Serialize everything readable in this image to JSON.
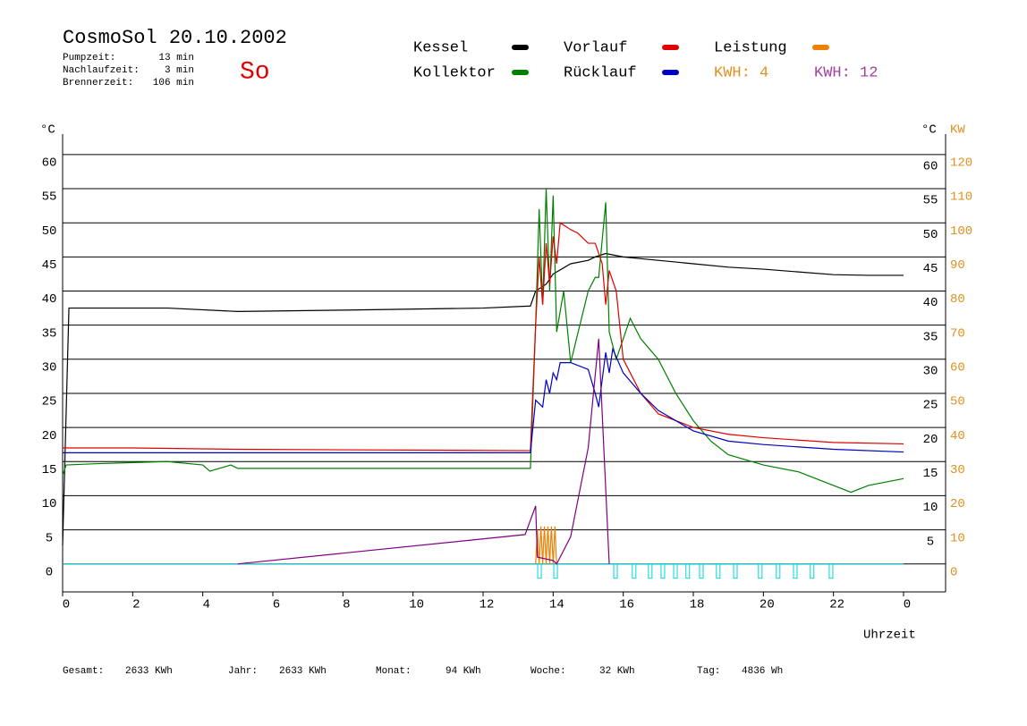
{
  "header": {
    "title": "CosmoSol 20.10.2002",
    "day": "So",
    "stats": [
      {
        "label": "Pumpzeit:",
        "value": "13 min"
      },
      {
        "label": "Nachlaufzeit:",
        "value": "3 min"
      },
      {
        "label": "Brennerzeit:",
        "value": "106 min"
      }
    ]
  },
  "chart_data": {
    "type": "line",
    "x_label": "Uhrzeit",
    "y_label": "°C",
    "y2_label": "°C",
    "y2_unit": "KW",
    "xlim": [
      0,
      25.2
    ],
    "xticks": [
      0,
      2,
      4,
      6,
      8,
      10,
      12,
      14,
      16,
      18,
      20,
      22,
      {
        "value": 24,
        "label": "0"
      }
    ],
    "ylim": [
      -4.1,
      63
    ],
    "yticks": [
      0,
      5,
      10,
      15,
      20,
      25,
      30,
      35,
      40,
      45,
      50,
      55,
      60
    ],
    "y2lim": [
      -8.2,
      126
    ],
    "y2ticks": [
      0,
      10,
      20,
      30,
      40,
      50,
      60,
      70,
      80,
      90,
      100,
      110,
      120
    ],
    "grid": true,
    "series": [
      {
        "name": "Kessel",
        "color": "#000000",
        "x": [
          0,
          0.18,
          1,
          3,
          5,
          8,
          12,
          13.35,
          13.5,
          13.8,
          14,
          14.5,
          15,
          15.2,
          15.5,
          16,
          17,
          18,
          19,
          20,
          21,
          22,
          23,
          24
        ],
        "values": [
          2.7,
          37.5,
          37.5,
          37.5,
          37,
          37.2,
          37.5,
          37.8,
          40,
          41,
          42.5,
          44,
          44.5,
          45,
          45.5,
          45,
          44.5,
          44,
          43.5,
          43.2,
          42.8,
          42.4,
          42.3,
          42.3
        ]
      },
      {
        "name": "Kollektor",
        "color": "#008000",
        "x": [
          0,
          0.1,
          1,
          3,
          4,
          4.2,
          4.8,
          5,
          13.35,
          13.5,
          13.6,
          13.7,
          13.8,
          13.9,
          14,
          14.1,
          14.3,
          14.5,
          15,
          15.2,
          15.3,
          15.5,
          15.6,
          15.8,
          16,
          16.2,
          16.5,
          17,
          17.5,
          18,
          18.5,
          19,
          20,
          21,
          22,
          22.5,
          23,
          24
        ],
        "values": [
          13,
          14.5,
          14.7,
          15,
          14.5,
          13.6,
          14.5,
          14,
          14,
          35,
          52,
          38,
          55,
          40,
          54,
          34,
          40,
          29.5,
          40,
          42,
          42,
          53,
          34,
          30,
          33,
          36,
          33,
          30,
          25,
          21,
          18,
          16,
          14.5,
          13.5,
          11.5,
          10.5,
          11.5,
          12.5
        ]
      },
      {
        "name": "Vorlauf",
        "color": "#e00000",
        "x": [
          0,
          2,
          5,
          13.35,
          13.5,
          13.6,
          13.7,
          13.8,
          13.9,
          14,
          14.1,
          14.2,
          14.5,
          14.7,
          15,
          15.2,
          15.4,
          15.5,
          15.6,
          15.8,
          16,
          16.5,
          17,
          18,
          19,
          20,
          22,
          24
        ],
        "values": [
          17,
          17,
          16.8,
          16.6,
          35,
          45,
          38,
          47,
          41,
          48,
          44,
          50,
          49,
          48.5,
          47,
          47,
          44,
          38,
          43,
          40,
          30,
          25,
          22,
          20,
          19,
          18.5,
          17.8,
          17.6
        ]
      },
      {
        "name": "Rücklauf",
        "color": "#0000c0",
        "x": [
          0,
          13.35,
          13.5,
          13.7,
          13.8,
          13.9,
          14,
          14.1,
          14.2,
          14.5,
          15,
          15.2,
          15.3,
          15.5,
          15.6,
          15.7,
          16,
          16.5,
          17,
          18,
          19,
          20,
          22,
          24
        ],
        "values": [
          16.3,
          16.3,
          24,
          23,
          27,
          25,
          28,
          27,
          29.5,
          29.5,
          28.5,
          25,
          23,
          31,
          28,
          31.5,
          28,
          25,
          22.5,
          19.5,
          18,
          17.5,
          16.8,
          16.4
        ]
      },
      {
        "name": "Leistung",
        "color": "#f08000",
        "axis": "y2",
        "x": [
          13.5,
          13.55,
          13.6,
          13.65,
          13.7,
          13.75,
          13.8,
          13.85,
          13.9,
          13.95,
          14,
          14.05,
          14.1
        ],
        "values": [
          0,
          10,
          0,
          11,
          0,
          11,
          0,
          11,
          0,
          11,
          0,
          11,
          0
        ]
      },
      {
        "color": "#800080",
        "axis": "y2",
        "x": [
          5,
          13.2,
          13.5,
          13.55,
          14,
          14.1,
          14.5,
          15,
          15.3,
          15.6
        ],
        "values": [
          0,
          8.6,
          17,
          2,
          1,
          0,
          8,
          34,
          66,
          0
        ]
      }
    ],
    "kwh_labels": [
      {
        "text": "KWH: 4",
        "color": "#e09020"
      },
      {
        "text": "KWH: 12",
        "color": "#a040a0"
      }
    ],
    "pump_color": "#00d8d8",
    "pump_pulses": [
      13.61,
      14.07,
      15.78,
      16.31,
      16.77,
      17.13,
      17.49,
      17.84,
      18.23,
      18.71,
      19.2,
      19.91,
      20.42,
      20.91,
      21.39,
      21.93
    ]
  },
  "footer": [
    {
      "label": "Gesamt:",
      "value": "2633 KWh"
    },
    {
      "label": "Jahr:",
      "value": "2633 KWh"
    },
    {
      "label": "Monat:",
      "value": "94 KWh"
    },
    {
      "label": "Woche:",
      "value": "32 KWh"
    },
    {
      "label": "Tag:",
      "value": "4836 Wh"
    }
  ]
}
